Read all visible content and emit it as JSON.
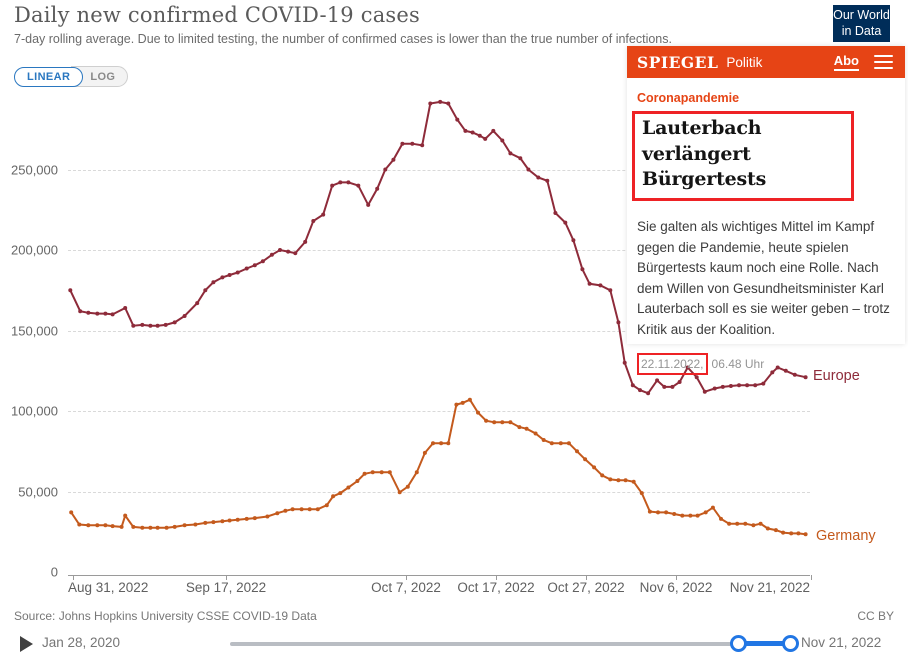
{
  "header": {
    "title": "Daily new confirmed COVID-19 cases",
    "subtitle": "7-day rolling average. Due to limited testing, the number of confirmed cases is lower than the true number of infections.",
    "logo": {
      "line1": "Our World",
      "line2": "in Data"
    }
  },
  "toolbar": {
    "linear_label": "LINEAR",
    "log_label": "LOG"
  },
  "chart_data": {
    "type": "line",
    "title": "Daily new confirmed COVID-19 cases",
    "x_axis_note": "days since Aug 31, 2022; chart window Aug 31, 2022 - Nov 21, 2022",
    "x_ticks": [
      {
        "label": "Aug 31, 2022",
        "day": 0
      },
      {
        "label": "Sep 17, 2022",
        "day": 17
      },
      {
        "label": "Oct 7, 2022",
        "day": 37
      },
      {
        "label": "Oct 17, 2022",
        "day": 47
      },
      {
        "label": "Oct 27, 2022",
        "day": 57
      },
      {
        "label": "Nov 6, 2022",
        "day": 67
      },
      {
        "label": "Nov 21, 2022",
        "day": 82
      }
    ],
    "y_axis": {
      "ticks": [
        {
          "label": "0",
          "value": 0
        },
        {
          "label": "50,000",
          "value": 50000
        },
        {
          "label": "100,000",
          "value": 100000
        },
        {
          "label": "150,000",
          "value": 150000
        },
        {
          "label": "200,000",
          "value": 200000
        },
        {
          "label": "250,000",
          "value": 250000
        }
      ],
      "max_value": 293000
    },
    "legend_position": "end-of-line labels",
    "grid": "dashed horizontal",
    "series": [
      {
        "name": "Europe",
        "color": "#8e2b3a",
        "points": [
          [
            -0.3,
            175000
          ],
          [
            0.8,
            162000
          ],
          [
            1.7,
            161000
          ],
          [
            2.7,
            160500
          ],
          [
            3.6,
            160500
          ],
          [
            4.4,
            160000
          ],
          [
            5.8,
            164000
          ],
          [
            6.7,
            153000
          ],
          [
            7.7,
            153500
          ],
          [
            8.6,
            153000
          ],
          [
            9.4,
            153000
          ],
          [
            10.3,
            153500
          ],
          [
            11.3,
            155000
          ],
          [
            12.4,
            159000
          ],
          [
            13.8,
            167000
          ],
          [
            14.7,
            175000
          ],
          [
            15.6,
            180000
          ],
          [
            16.6,
            183000
          ],
          [
            17.4,
            184500
          ],
          [
            18.3,
            186000
          ],
          [
            19.3,
            188500
          ],
          [
            20.2,
            190500
          ],
          [
            21.1,
            193000
          ],
          [
            22.1,
            197000
          ],
          [
            23,
            200000
          ],
          [
            23.9,
            199000
          ],
          [
            24.7,
            198000
          ],
          [
            25.8,
            205000
          ],
          [
            26.7,
            218000
          ],
          [
            27.8,
            222000
          ],
          [
            28.8,
            240000
          ],
          [
            29.7,
            242000
          ],
          [
            30.6,
            242000
          ],
          [
            31.7,
            240000
          ],
          [
            32.8,
            228000
          ],
          [
            33.8,
            238000
          ],
          [
            34.7,
            250000
          ],
          [
            35.6,
            256000
          ],
          [
            36.6,
            266000
          ],
          [
            37.7,
            266000
          ],
          [
            38.8,
            265000
          ],
          [
            39.7,
            291000
          ],
          [
            40.8,
            292000
          ],
          [
            41.7,
            291000
          ],
          [
            42.7,
            281000
          ],
          [
            43.6,
            274000
          ],
          [
            44.4,
            273000
          ],
          [
            45.2,
            271000
          ],
          [
            45.8,
            269000
          ],
          [
            46.7,
            274000
          ],
          [
            47.7,
            268000
          ],
          [
            48.6,
            260000
          ],
          [
            49.7,
            257000
          ],
          [
            50.6,
            250000
          ],
          [
            51.7,
            245000
          ],
          [
            52.7,
            243000
          ],
          [
            53.6,
            223000
          ],
          [
            54.7,
            217000
          ],
          [
            55.6,
            206000
          ],
          [
            56.6,
            188000
          ],
          [
            57.4,
            179000
          ],
          [
            58.6,
            178000
          ],
          [
            59.7,
            175000
          ],
          [
            60.6,
            155000
          ],
          [
            61.3,
            130000
          ],
          [
            62.2,
            116000
          ],
          [
            63,
            113000
          ],
          [
            63.9,
            111000
          ],
          [
            64.9,
            119000
          ],
          [
            65.7,
            115000
          ],
          [
            66.6,
            115000
          ],
          [
            67.4,
            118000
          ],
          [
            68.3,
            127000
          ],
          [
            69.3,
            121000
          ],
          [
            70.2,
            112000
          ],
          [
            71.3,
            114000
          ],
          [
            72.2,
            115000
          ],
          [
            73.1,
            115500
          ],
          [
            74,
            116000
          ],
          [
            74.9,
            116000
          ],
          [
            75.8,
            116000
          ],
          [
            76.7,
            117000
          ],
          [
            77.7,
            124000
          ],
          [
            78.3,
            127000
          ],
          [
            79.2,
            125000
          ],
          [
            80.2,
            122500
          ],
          [
            81.4,
            121000
          ]
        ]
      },
      {
        "name": "Germany",
        "color": "#c45a1d",
        "points": [
          [
            -0.2,
            37000
          ],
          [
            0.7,
            29500
          ],
          [
            1.7,
            29000
          ],
          [
            2.7,
            29000
          ],
          [
            3.6,
            29000
          ],
          [
            4.4,
            28500
          ],
          [
            5.4,
            28000
          ],
          [
            5.8,
            35000
          ],
          [
            6.7,
            28000
          ],
          [
            7.7,
            27500
          ],
          [
            8.6,
            27500
          ],
          [
            9.4,
            27500
          ],
          [
            10.4,
            27500
          ],
          [
            11.3,
            28000
          ],
          [
            12.4,
            29000
          ],
          [
            13.6,
            29500
          ],
          [
            14.7,
            30500
          ],
          [
            15.6,
            31000
          ],
          [
            16.6,
            31500
          ],
          [
            17.4,
            32000
          ],
          [
            18.3,
            32500
          ],
          [
            19.3,
            33000
          ],
          [
            20.2,
            33500
          ],
          [
            21.6,
            34500
          ],
          [
            22.7,
            36500
          ],
          [
            23.6,
            38000
          ],
          [
            24.4,
            39000
          ],
          [
            25.4,
            39000
          ],
          [
            26.3,
            39000
          ],
          [
            27.2,
            39000
          ],
          [
            28.2,
            41500
          ],
          [
            28.9,
            47000
          ],
          [
            29.7,
            49000
          ],
          [
            30.6,
            52500
          ],
          [
            31.6,
            56500
          ],
          [
            32.4,
            61000
          ],
          [
            33.3,
            62000
          ],
          [
            34.3,
            62000
          ],
          [
            35.2,
            62000
          ],
          [
            36.3,
            49500
          ],
          [
            37.2,
            53000
          ],
          [
            38.2,
            62000
          ],
          [
            39.1,
            74000
          ],
          [
            40,
            80000
          ],
          [
            40.9,
            80000
          ],
          [
            41.7,
            80000
          ],
          [
            42.6,
            104000
          ],
          [
            43.3,
            105000
          ],
          [
            44.1,
            107000
          ],
          [
            45,
            99000
          ],
          [
            45.9,
            94000
          ],
          [
            46.8,
            93000
          ],
          [
            47.7,
            93000
          ],
          [
            48.6,
            93000
          ],
          [
            49.6,
            90000
          ],
          [
            50.4,
            89000
          ],
          [
            51.4,
            86000
          ],
          [
            52.3,
            82000
          ],
          [
            53.2,
            80000
          ],
          [
            54.2,
            80000
          ],
          [
            55.1,
            80000
          ],
          [
            56,
            75000
          ],
          [
            56.9,
            70000
          ],
          [
            57.9,
            65000
          ],
          [
            58.8,
            60000
          ],
          [
            59.7,
            57500
          ],
          [
            60.6,
            57000
          ],
          [
            61.4,
            57000
          ],
          [
            62.3,
            56000
          ],
          [
            63.2,
            49000
          ],
          [
            64.1,
            37500
          ],
          [
            65,
            37000
          ],
          [
            65.9,
            37000
          ],
          [
            66.8,
            36000
          ],
          [
            67.7,
            35000
          ],
          [
            68.6,
            35000
          ],
          [
            69.4,
            35000
          ],
          [
            70.3,
            37000
          ],
          [
            71.1,
            40000
          ],
          [
            72,
            33000
          ],
          [
            72.9,
            30000
          ],
          [
            73.8,
            30000
          ],
          [
            74.7,
            30000
          ],
          [
            75.6,
            29000
          ],
          [
            76.4,
            30000
          ],
          [
            77.2,
            27000
          ],
          [
            78.1,
            26000
          ],
          [
            78.9,
            24500
          ],
          [
            79.8,
            24000
          ],
          [
            80.6,
            24000
          ],
          [
            81.4,
            23500
          ]
        ]
      }
    ]
  },
  "spiegel": {
    "brand": "SPIEGEL",
    "section": "Politik",
    "abo": "Abo",
    "kicker": "Coronapandemie",
    "headline": "Lauterbach verlängert Bürgertests",
    "body": "Sie galten als wichtiges Mittel im Kampf gegen die Pandemie, heute spielen Bürgertests kaum noch eine Rolle. Nach dem Willen von Gesundheitsminister Karl Lauterbach soll es sie weiter geben – trotz Kritik aus der Koalition.",
    "date": "22.11.2022,",
    "time": "06.48 Uhr"
  },
  "footer": {
    "source": "Source: Johns Hopkins University CSSE COVID-19 Data",
    "license": "CC BY",
    "timeline_start": "Jan 28, 2020",
    "timeline_end": "Nov 21, 2022"
  },
  "colors": {
    "europe_line": "#8e2b3a",
    "germany_line": "#c45a1d",
    "spiegel_orange": "#e64415",
    "annotation_red": "#ee2225",
    "owid_navy": "#002d59",
    "accent_blue": "#2176e4",
    "toggle_blue": "#2a77c0"
  }
}
